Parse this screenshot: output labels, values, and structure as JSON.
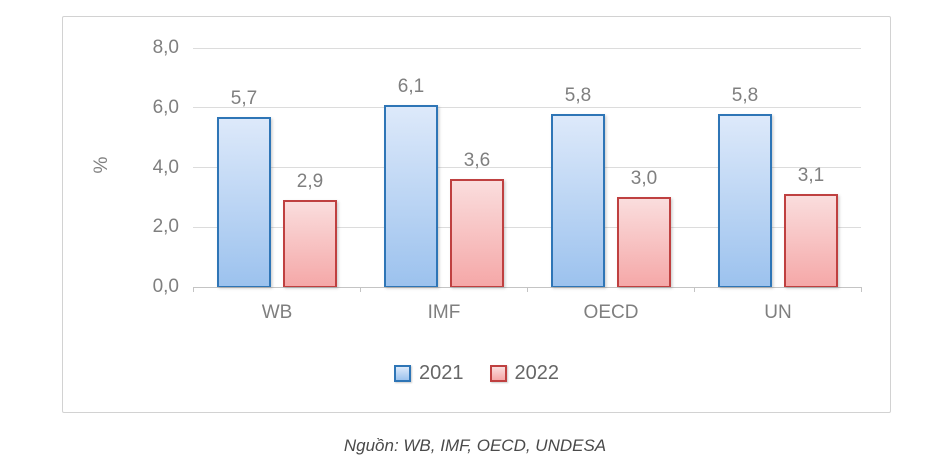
{
  "chart_data": {
    "type": "bar",
    "categories": [
      "WB",
      "IMF",
      "OECD",
      "UN"
    ],
    "series": [
      {
        "name": "2021",
        "values": [
          5.7,
          6.1,
          5.8,
          5.8
        ],
        "value_labels": [
          "5,7",
          "6,1",
          "5,8",
          "5,8"
        ],
        "fill_top": "#dde9fa",
        "fill_bottom": "#9cc2ee",
        "border": "#2e75b6"
      },
      {
        "name": "2022",
        "values": [
          2.9,
          3.6,
          3.0,
          3.1
        ],
        "value_labels": [
          "2,9",
          "3,6",
          "3,0",
          "3,1"
        ],
        "fill_top": "#fadddd",
        "fill_bottom": "#f5a8a8",
        "border": "#bf4040"
      }
    ],
    "title": "",
    "xlabel": "",
    "ylabel": "%",
    "ylim": [
      0,
      8
    ],
    "yticks": [
      0,
      2,
      4,
      6,
      8
    ],
    "ytick_labels": [
      "0,0",
      "2,0",
      "4,0",
      "6,0",
      "8,0"
    ],
    "decimal_separator": ",",
    "grid": true,
    "legend_position": "bottom",
    "legend_labels": [
      "2021",
      "2022"
    ]
  },
  "caption": {
    "text": "Nguồn: WB, IMF, OECD, UNDESA"
  }
}
